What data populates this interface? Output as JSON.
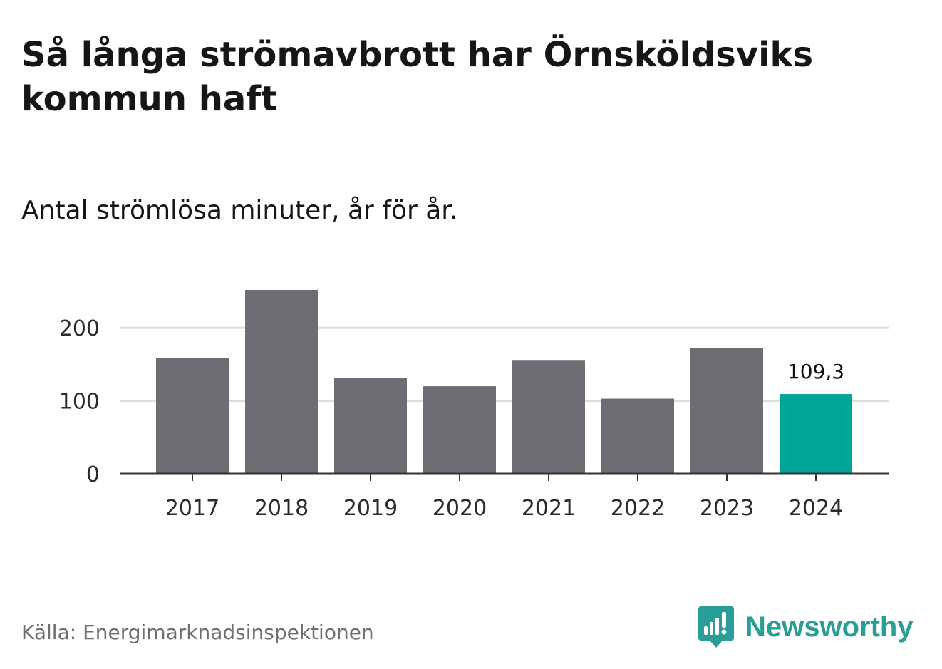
{
  "header": {
    "title": "Så långa strömavbrott har Örnsköldsviks kommun haft",
    "subtitle": "Antal strömlösa minuter, år för år."
  },
  "footer": {
    "source": "Källa: Energimarknadsinspektionen",
    "brand": "Newsworthy"
  },
  "colors": {
    "bar_default": "#6e6d73",
    "bar_highlight": "#00a598",
    "grid": "#dddddd",
    "axis": "#333333",
    "brand": "#2a9d96"
  },
  "chart_data": {
    "type": "bar",
    "title": "Så långa strömavbrott har Örnsköldsviks kommun haft",
    "subtitle": "Antal strömlösa minuter, år för år.",
    "xlabel": "",
    "ylabel": "",
    "categories": [
      "2017",
      "2018",
      "2019",
      "2020",
      "2021",
      "2022",
      "2023",
      "2024"
    ],
    "values": [
      159,
      252,
      131,
      120,
      156,
      103,
      172,
      109.3
    ],
    "highlight_index": 7,
    "data_labels": [
      {
        "index": 7,
        "text": "109,3"
      }
    ],
    "yticks": [
      0,
      100,
      200
    ],
    "ytick_labels": [
      "0",
      "100",
      "200"
    ],
    "ylim": [
      0,
      260
    ],
    "grid": true,
    "legend": "none"
  }
}
